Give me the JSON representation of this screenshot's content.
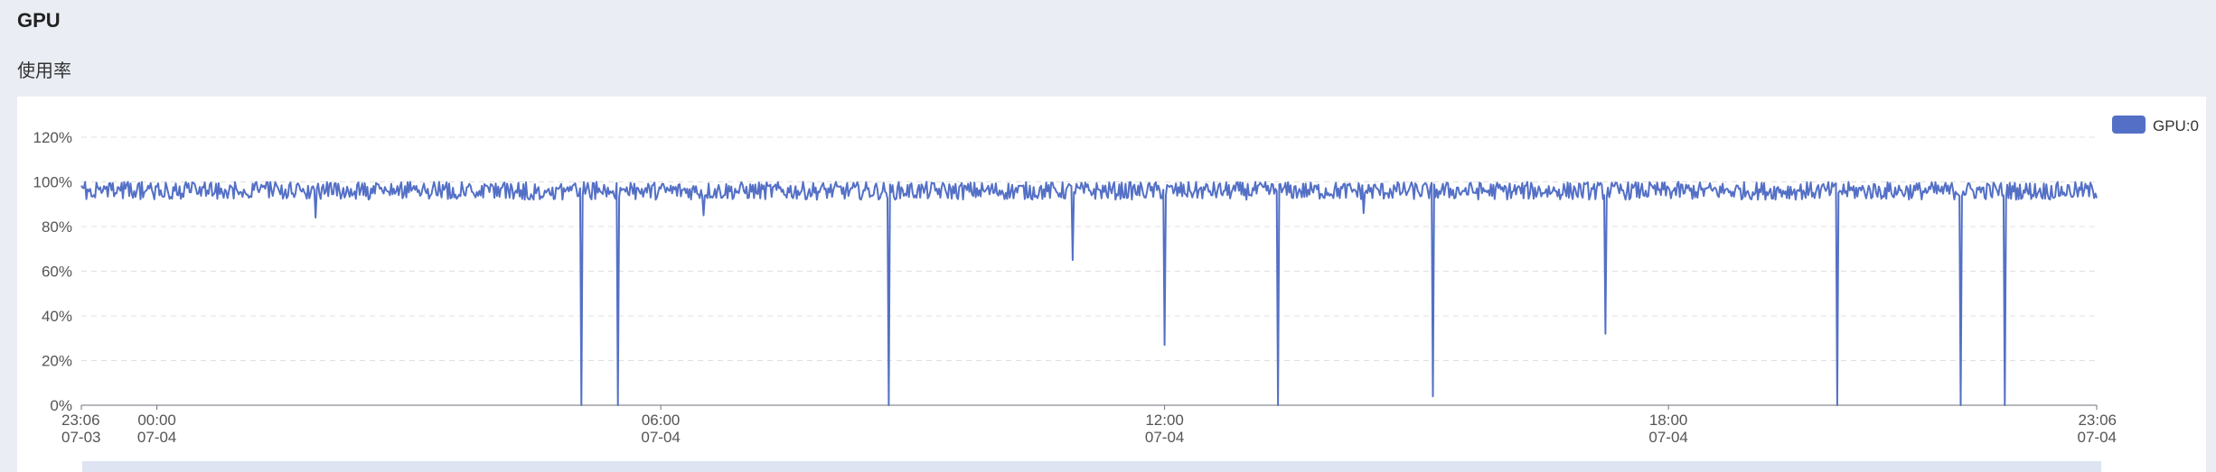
{
  "header": {
    "title": "GPU",
    "subtitle": "使用率"
  },
  "colors": {
    "series": "#5470c6",
    "grid": "#e0e0e0",
    "axis": "#6e7079",
    "zoom_bar": "#dfe4f3"
  },
  "chart_data": {
    "type": "line",
    "xlabel": "",
    "ylabel": "",
    "ylim": [
      0,
      120
    ],
    "grid": true,
    "legend_position": "top-right",
    "y_ticks": [
      "0%",
      "20%",
      "40%",
      "60%",
      "80%",
      "100%",
      "120%"
    ],
    "x_ticks": [
      {
        "time": "23:06",
        "date": "07-03"
      },
      {
        "time": "00:00",
        "date": "07-04"
      },
      {
        "time": "06:00",
        "date": "07-04"
      },
      {
        "time": "12:00",
        "date": "07-04"
      },
      {
        "time": "18:00",
        "date": "07-04"
      },
      {
        "time": "23:06",
        "date": "07-04"
      }
    ],
    "x_tick_hours": [
      0,
      0.9,
      6.9,
      12.9,
      18.9,
      24
    ],
    "x_range_hours": [
      0,
      24
    ],
    "baseline_percent": 96,
    "baseline_noise_percent": 4,
    "series": [
      {
        "name": "GPU:0",
        "dips": [
          {
            "time": "01:53",
            "value": 84
          },
          {
            "time": "05:03",
            "value": 0
          },
          {
            "time": "05:29",
            "value": 0
          },
          {
            "time": "06:31",
            "value": 85
          },
          {
            "time": "08:43",
            "value": 0
          },
          {
            "time": "10:54",
            "value": 65
          },
          {
            "time": "12:00",
            "value": 27
          },
          {
            "time": "13:21",
            "value": 0
          },
          {
            "time": "14:22",
            "value": 86
          },
          {
            "time": "15:12",
            "value": 4
          },
          {
            "time": "17:15",
            "value": 32
          },
          {
            "time": "20:01",
            "value": 0
          },
          {
            "time": "21:29",
            "value": 0
          },
          {
            "time": "22:00",
            "value": 0
          }
        ]
      }
    ]
  }
}
